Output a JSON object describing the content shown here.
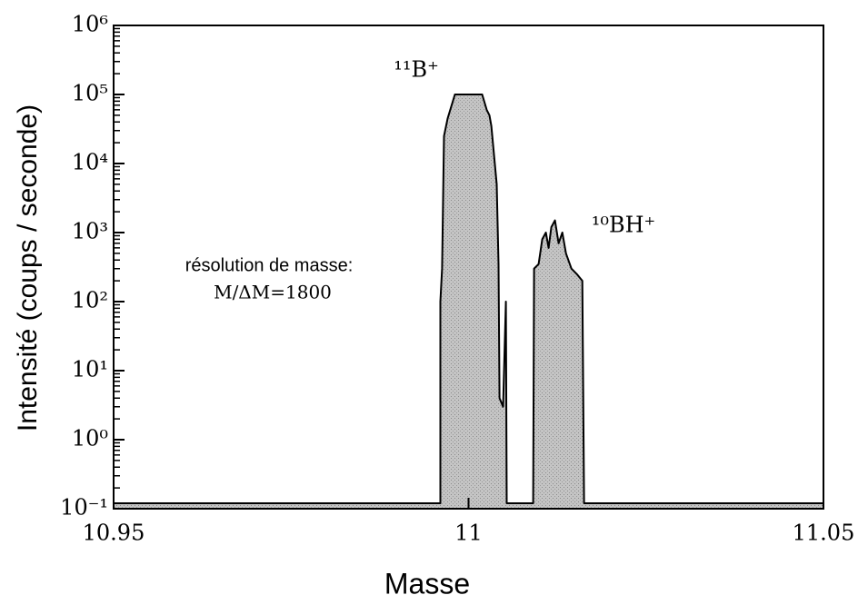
{
  "chart_data": {
    "type": "area",
    "xlabel": "Masse",
    "ylabel": "Intensité (coups / seconde)",
    "annotations": [
      "¹¹B⁺",
      "¹⁰BH⁺",
      "résolution de masse:",
      "M/ΔM=1800"
    ],
    "x": [
      10.95,
      10.99603,
      10.99603,
      10.99628,
      10.99654,
      10.99705,
      10.99808,
      11.00192,
      11.00256,
      11.00295,
      11.00321,
      11.00397,
      11.00423,
      11.00436,
      11.00487,
      11.00526,
      11.00538,
      11.0091,
      11.00923,
      11.00987,
      11.01038,
      11.0109,
      11.01128,
      11.01167,
      11.01218,
      11.01269,
      11.01321,
      11.01372,
      11.01449,
      11.01526,
      11.01603,
      11.01628,
      11.05
    ],
    "values": [
      0.12,
      0.12,
      100,
      300,
      25000,
      45000,
      100000,
      100000,
      60000,
      50000,
      35000,
      5000,
      350,
      4,
      3,
      100,
      0.12,
      0.12,
      300,
      350,
      800,
      1000,
      600,
      1200,
      1500,
      700,
      1000,
      500,
      300,
      250,
      200,
      0.12,
      0.12
    ],
    "color": "#bdbdbd",
    "line_color": "#000000",
    "xlim": [
      10.95,
      11.05
    ],
    "xticks": [
      10.95,
      11,
      11.05
    ],
    "ylim": [
      0.1,
      1000000
    ],
    "ylog": true,
    "yticks": [
      {
        "value": 0.1,
        "label": "10⁻¹"
      },
      {
        "value": 1,
        "label": "10⁰"
      },
      {
        "value": 10,
        "label": "10¹"
      },
      {
        "value": 100,
        "label": "10²"
      },
      {
        "value": 1000,
        "label": "10³"
      },
      {
        "value": 10000,
        "label": "10⁴"
      },
      {
        "value": 100000,
        "label": "10⁵"
      },
      {
        "value": 1000000,
        "label": "10⁶"
      }
    ]
  }
}
